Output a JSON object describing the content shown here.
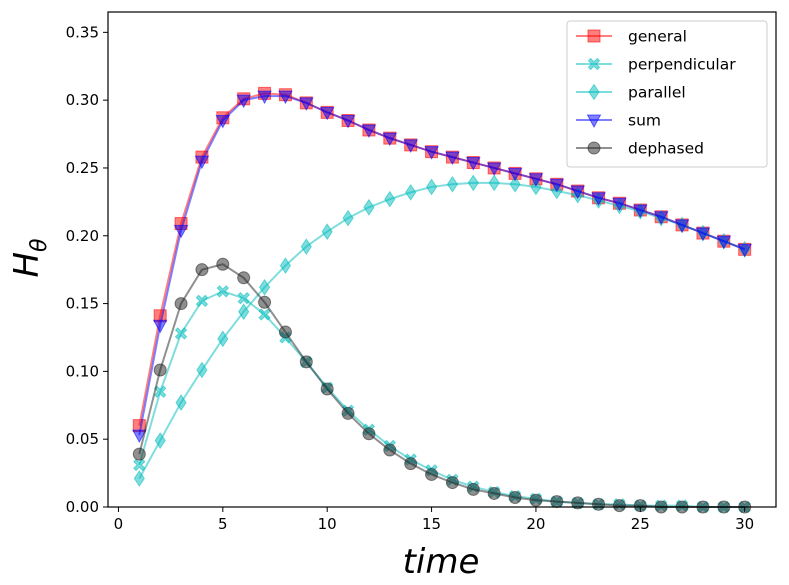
{
  "chart_data": {
    "type": "line",
    "title": "",
    "xlabel": "time",
    "ylabel_main": "H",
    "ylabel_sub": "θ",
    "xlim": [
      -0.5,
      31.5
    ],
    "ylim": [
      0.0,
      0.365
    ],
    "xticks": [
      0,
      5,
      10,
      15,
      20,
      25,
      30
    ],
    "xtick_labels": [
      "0",
      "5",
      "10",
      "15",
      "20",
      "25",
      "30"
    ],
    "yticks": [
      0.0,
      0.05,
      0.1,
      0.15,
      0.2,
      0.25,
      0.3,
      0.35
    ],
    "ytick_labels": [
      "0.00",
      "0.05",
      "0.10",
      "0.15",
      "0.20",
      "0.25",
      "0.30",
      "0.35"
    ],
    "grid": false,
    "legend_position": "top-right",
    "x": [
      1,
      2,
      3,
      4,
      5,
      6,
      7,
      8,
      9,
      10,
      11,
      12,
      13,
      14,
      15,
      16,
      17,
      18,
      19,
      20,
      21,
      22,
      23,
      24,
      25,
      26,
      27,
      28,
      29,
      30
    ],
    "series": [
      {
        "name": "general",
        "color": "#ff0000",
        "marker": "square",
        "values": [
          0.06,
          0.141,
          0.209,
          0.258,
          0.287,
          0.301,
          0.305,
          0.304,
          0.298,
          0.291,
          0.285,
          0.278,
          0.272,
          0.267,
          0.262,
          0.258,
          0.254,
          0.25,
          0.246,
          0.242,
          0.238,
          0.233,
          0.228,
          0.224,
          0.219,
          0.214,
          0.208,
          0.202,
          0.196,
          0.19
        ]
      },
      {
        "name": "perpendicular",
        "color": "#00bbbb",
        "marker": "x",
        "values": [
          0.031,
          0.085,
          0.128,
          0.152,
          0.159,
          0.154,
          0.142,
          0.125,
          0.107,
          0.088,
          0.071,
          0.057,
          0.045,
          0.035,
          0.027,
          0.02,
          0.015,
          0.011,
          0.008,
          0.006,
          0.004,
          0.003,
          0.002,
          0.002,
          0.001,
          0.001,
          0.001,
          0.0,
          0.0,
          0.0
        ]
      },
      {
        "name": "parallel",
        "color": "#00bbbb",
        "marker": "diamond",
        "values": [
          0.021,
          0.049,
          0.077,
          0.101,
          0.124,
          0.144,
          0.162,
          0.178,
          0.192,
          0.203,
          0.213,
          0.221,
          0.227,
          0.232,
          0.236,
          0.238,
          0.239,
          0.239,
          0.238,
          0.236,
          0.233,
          0.23,
          0.226,
          0.222,
          0.218,
          0.213,
          0.208,
          0.202,
          0.196,
          0.19
        ]
      },
      {
        "name": "sum",
        "color": "#0000ff",
        "marker": "triangle-down",
        "values": [
          0.053,
          0.134,
          0.204,
          0.255,
          0.285,
          0.3,
          0.303,
          0.303,
          0.298,
          0.291,
          0.285,
          0.278,
          0.272,
          0.267,
          0.262,
          0.258,
          0.254,
          0.25,
          0.246,
          0.242,
          0.238,
          0.233,
          0.228,
          0.224,
          0.219,
          0.214,
          0.208,
          0.202,
          0.196,
          0.19
        ]
      },
      {
        "name": "dephased",
        "color": "#222222",
        "marker": "circle",
        "values": [
          0.039,
          0.101,
          0.15,
          0.175,
          0.179,
          0.169,
          0.151,
          0.129,
          0.107,
          0.087,
          0.069,
          0.054,
          0.042,
          0.032,
          0.024,
          0.018,
          0.013,
          0.01,
          0.007,
          0.005,
          0.004,
          0.003,
          0.002,
          0.001,
          0.001,
          0.0,
          0.0,
          0.0,
          0.0,
          0.0
        ]
      }
    ]
  }
}
